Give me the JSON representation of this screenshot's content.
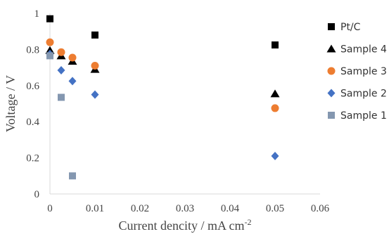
{
  "chart_data": {
    "type": "scatter",
    "title": "",
    "xlabel": "Current dencity / mA cm",
    "xlabel_superscript": "-2",
    "ylabel": "Voltage / V",
    "xlim": [
      0,
      0.06
    ],
    "ylim": [
      0,
      1
    ],
    "x_ticks": [
      "0",
      "0.01",
      "0.02",
      "0.03",
      "0.04",
      "0.05",
      "0.06"
    ],
    "y_ticks": [
      "0",
      "0.2",
      "0.4",
      "0.6",
      "0.8",
      "1"
    ],
    "grid": false,
    "legend_position": "right",
    "series": [
      {
        "name": "Pt/C",
        "marker": "square",
        "color": "#000000",
        "points": [
          {
            "x": 0,
            "y": 0.97
          },
          {
            "x": 0.01,
            "y": 0.88
          },
          {
            "x": 0.05,
            "y": 0.825
          }
        ]
      },
      {
        "name": "Sample 4",
        "marker": "triangle",
        "color": "#000000",
        "points": [
          {
            "x": 0,
            "y": 0.795
          },
          {
            "x": 0.0025,
            "y": 0.765
          },
          {
            "x": 0.005,
            "y": 0.735
          },
          {
            "x": 0.01,
            "y": 0.69
          },
          {
            "x": 0.05,
            "y": 0.555
          }
        ]
      },
      {
        "name": "Sample 3",
        "marker": "circle",
        "color": "#ed7d31",
        "points": [
          {
            "x": 0,
            "y": 0.84
          },
          {
            "x": 0.0025,
            "y": 0.785
          },
          {
            "x": 0.005,
            "y": 0.755
          },
          {
            "x": 0.01,
            "y": 0.71
          },
          {
            "x": 0.05,
            "y": 0.475
          }
        ]
      },
      {
        "name": "Sample 2",
        "marker": "diamond",
        "color": "#4472c4",
        "points": [
          {
            "x": 0,
            "y": 0.775
          },
          {
            "x": 0.0025,
            "y": 0.685
          },
          {
            "x": 0.005,
            "y": 0.625
          },
          {
            "x": 0.01,
            "y": 0.55
          },
          {
            "x": 0.05,
            "y": 0.21
          }
        ]
      },
      {
        "name": "Sample 1",
        "marker": "square",
        "color": "#8497b0",
        "points": [
          {
            "x": 0,
            "y": 0.765
          },
          {
            "x": 0.0025,
            "y": 0.535
          },
          {
            "x": 0.005,
            "y": 0.1
          }
        ]
      }
    ]
  }
}
